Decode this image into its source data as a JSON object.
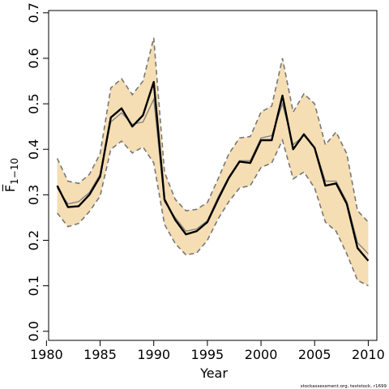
{
  "chart_data": {
    "type": "line",
    "xlabel": "Year",
    "ylabel": "F̅",
    "ylabel_subscript": "1−10",
    "footer": "stockassessment.org, teststock, r1699",
    "xlim": [
      1980.2,
      2010.8
    ],
    "ylim": [
      -0.02,
      0.705
    ],
    "x_ticks": [
      1980,
      1985,
      1990,
      1995,
      2000,
      2005,
      2010
    ],
    "y_ticks": [
      0.0,
      0.1,
      0.2,
      0.3,
      0.4,
      0.5,
      0.6,
      0.7
    ],
    "y_tick_labels": [
      "0.0",
      "0.1",
      "0.2",
      "0.3",
      "0.4",
      "0.5",
      "0.6",
      "0.7"
    ],
    "grid": false,
    "colors": {
      "band": "#f5deb3",
      "estimate": "#000000",
      "reference": "#808080",
      "bounds": "#777777"
    },
    "x": [
      1981,
      1982,
      1983,
      1984,
      1985,
      1986,
      1987,
      1988,
      1989,
      1990,
      1991,
      1992,
      1993,
      1994,
      1995,
      1996,
      1997,
      1998,
      1999,
      2000,
      2001,
      2002,
      2003,
      2004,
      2005,
      2006,
      2007,
      2008,
      2009,
      2010
    ],
    "series": [
      {
        "role": "estimate",
        "values": [
          0.32,
          0.273,
          0.275,
          0.3,
          0.34,
          0.47,
          0.49,
          0.45,
          0.475,
          0.548,
          0.29,
          0.245,
          0.213,
          0.22,
          0.24,
          0.29,
          0.337,
          0.373,
          0.37,
          0.42,
          0.42,
          0.518,
          0.4,
          0.433,
          0.403,
          0.32,
          0.325,
          0.28,
          0.183,
          0.155
        ]
      },
      {
        "role": "reference",
        "values": [
          0.315,
          0.28,
          0.285,
          0.305,
          0.345,
          0.46,
          0.48,
          0.455,
          0.46,
          0.51,
          0.285,
          0.25,
          0.22,
          0.225,
          0.243,
          0.295,
          0.34,
          0.375,
          0.375,
          0.425,
          0.43,
          0.5,
          0.41,
          0.43,
          0.405,
          0.33,
          0.33,
          0.285,
          0.195,
          0.17
        ]
      },
      {
        "role": "upper",
        "values": [
          0.38,
          0.33,
          0.325,
          0.345,
          0.39,
          0.535,
          0.555,
          0.52,
          0.55,
          0.645,
          0.35,
          0.29,
          0.265,
          0.268,
          0.283,
          0.335,
          0.39,
          0.425,
          0.428,
          0.482,
          0.495,
          0.6,
          0.482,
          0.522,
          0.5,
          0.41,
          0.438,
          0.39,
          0.265,
          0.24
        ]
      },
      {
        "role": "lower",
        "values": [
          0.26,
          0.23,
          0.237,
          0.263,
          0.297,
          0.4,
          0.418,
          0.392,
          0.405,
          0.37,
          0.235,
          0.193,
          0.168,
          0.172,
          0.2,
          0.247,
          0.285,
          0.315,
          0.32,
          0.36,
          0.37,
          0.42,
          0.335,
          0.35,
          0.315,
          0.24,
          0.22,
          0.17,
          0.112,
          0.1
        ]
      }
    ]
  }
}
